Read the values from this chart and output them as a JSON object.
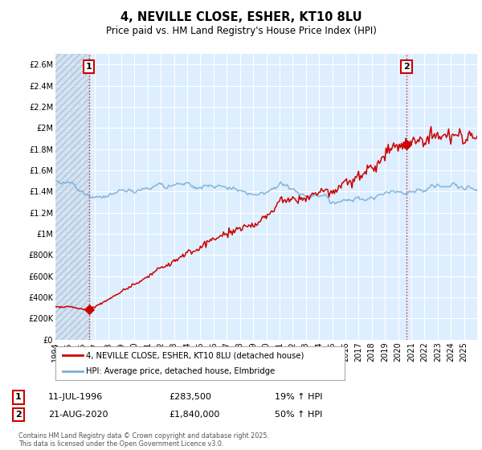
{
  "title": "4, NEVILLE CLOSE, ESHER, KT10 8LU",
  "subtitle": "Price paid vs. HM Land Registry's House Price Index (HPI)",
  "ylabel_ticks": [
    "£0",
    "£200K",
    "£400K",
    "£600K",
    "£800K",
    "£1M",
    "£1.2M",
    "£1.4M",
    "£1.6M",
    "£1.8M",
    "£2M",
    "£2.2M",
    "£2.4M",
    "£2.6M"
  ],
  "ytick_values": [
    0,
    200000,
    400000,
    600000,
    800000,
    1000000,
    1200000,
    1400000,
    1600000,
    1800000,
    2000000,
    2200000,
    2400000,
    2600000
  ],
  "ylim": [
    0,
    2700000
  ],
  "xlim_start": 1994.0,
  "xlim_end": 2026.0,
  "xtick_years": [
    1994,
    1995,
    1996,
    1997,
    1998,
    1999,
    2000,
    2001,
    2002,
    2003,
    2004,
    2005,
    2006,
    2007,
    2008,
    2009,
    2010,
    2011,
    2012,
    2013,
    2014,
    2015,
    2016,
    2017,
    2018,
    2019,
    2020,
    2021,
    2022,
    2023,
    2024,
    2025
  ],
  "ann1_x": 1996.53,
  "ann1_y": 283500,
  "ann2_x": 2020.64,
  "ann2_y": 1840000,
  "ann1_label": "1",
  "ann2_label": "2",
  "ann1_date": "11-JUL-1996",
  "ann1_price": "£283,500",
  "ann1_hpi": "19% ↑ HPI",
  "ann2_date": "21-AUG-2020",
  "ann2_price": "£1,840,000",
  "ann2_hpi": "50% ↑ HPI",
  "legend_line1": "4, NEVILLE CLOSE, ESHER, KT10 8LU (detached house)",
  "legend_line2": "HPI: Average price, detached house, Elmbridge",
  "footer": "Contains HM Land Registry data © Crown copyright and database right 2025.\nThis data is licensed under the Open Government Licence v3.0.",
  "line_color": "#cc0000",
  "hpi_color": "#7aaed6",
  "bg_color": "#ddeeff",
  "grid_color": "#ffffff",
  "hatch_color": "#c8d8e8"
}
